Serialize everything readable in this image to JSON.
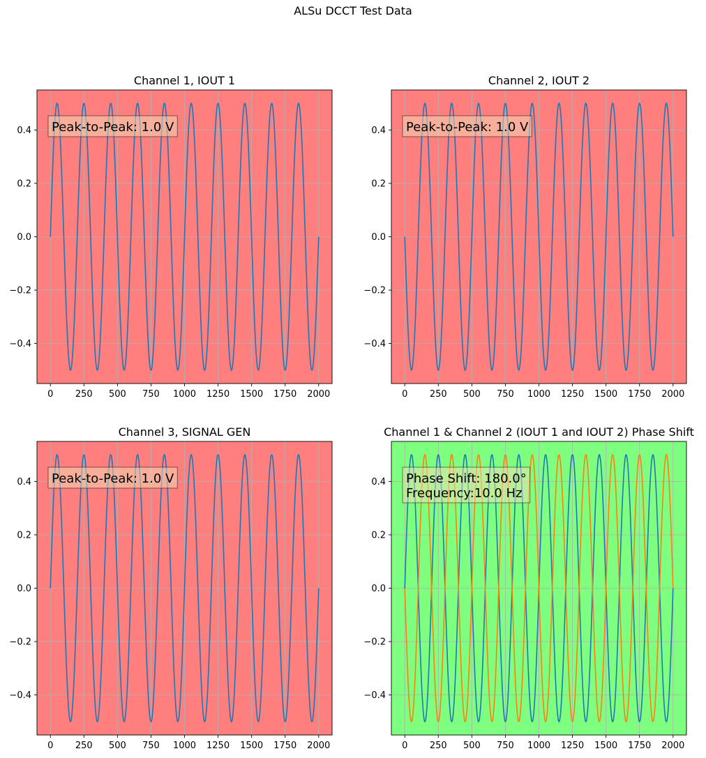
{
  "suptitle": "ALSu DCCT Test Data",
  "colors": {
    "fail_background": "#ff7f7f",
    "pass_background": "#7fff7f",
    "series_1": "#1f77b4",
    "series_2": "#ff7f0e",
    "grid": "#b0b0b0",
    "annotation_box": "#f5deb3"
  },
  "chart_data": [
    {
      "type": "line",
      "title": "Channel 1, IOUT 1",
      "background": "fail",
      "xlim": [
        -100,
        2100
      ],
      "ylim": [
        -0.55,
        0.55
      ],
      "xticks": [
        0,
        250,
        500,
        750,
        1000,
        1250,
        1500,
        1750,
        2000
      ],
      "yticks": [
        -0.4,
        -0.2,
        0.0,
        0.2,
        0.4
      ],
      "ytick_labels": [
        "−0.4",
        "−0.2",
        "0.0",
        "0.2",
        "0.4"
      ],
      "grid": true,
      "annotation": [
        "Peak-to-Peak: 1.0 V"
      ],
      "series": [
        {
          "amplitude": 0.5,
          "cycles": 10,
          "phase_deg": 0,
          "x_start": 0,
          "x_end": 2000,
          "points": 2000,
          "color": "#1f77b4"
        }
      ]
    },
    {
      "type": "line",
      "title": "Channel 2, IOUT 2",
      "background": "fail",
      "xlim": [
        -100,
        2100
      ],
      "ylim": [
        -0.55,
        0.55
      ],
      "xticks": [
        0,
        250,
        500,
        750,
        1000,
        1250,
        1500,
        1750,
        2000
      ],
      "yticks": [
        -0.4,
        -0.2,
        0.0,
        0.2,
        0.4
      ],
      "ytick_labels": [
        "−0.4",
        "−0.2",
        "0.0",
        "0.2",
        "0.4"
      ],
      "grid": true,
      "annotation": [
        "Peak-to-Peak: 1.0 V"
      ],
      "series": [
        {
          "amplitude": 0.5,
          "cycles": 10,
          "phase_deg": 180,
          "x_start": 0,
          "x_end": 2000,
          "points": 2000,
          "color": "#1f77b4"
        }
      ]
    },
    {
      "type": "line",
      "title": "Channel 3, SIGNAL GEN",
      "background": "fail",
      "xlim": [
        -100,
        2100
      ],
      "ylim": [
        -0.55,
        0.55
      ],
      "xticks": [
        0,
        250,
        500,
        750,
        1000,
        1250,
        1500,
        1750,
        2000
      ],
      "yticks": [
        -0.4,
        -0.2,
        0.0,
        0.2,
        0.4
      ],
      "ytick_labels": [
        "−0.4",
        "−0.2",
        "0.0",
        "0.2",
        "0.4"
      ],
      "grid": true,
      "annotation": [
        "Peak-to-Peak: 1.0 V"
      ],
      "series": [
        {
          "amplitude": 0.5,
          "cycles": 10,
          "phase_deg": 0,
          "x_start": 0,
          "x_end": 2000,
          "points": 2000,
          "color": "#1f77b4"
        }
      ]
    },
    {
      "type": "line",
      "title": "Channel 1 & Channel 2 (IOUT 1 and IOUT 2) Phase Shift",
      "background": "pass",
      "xlim": [
        -100,
        2100
      ],
      "ylim": [
        -0.55,
        0.55
      ],
      "xticks": [
        0,
        250,
        500,
        750,
        1000,
        1250,
        1500,
        1750,
        2000
      ],
      "yticks": [
        -0.4,
        -0.2,
        0.0,
        0.2,
        0.4
      ],
      "ytick_labels": [
        "−0.4",
        "−0.2",
        "0.0",
        "0.2",
        "0.4"
      ],
      "grid": true,
      "annotation": [
        "Phase Shift: 180.0°",
        "Frequency:10.0 Hz"
      ],
      "series": [
        {
          "amplitude": 0.5,
          "cycles": 10,
          "phase_deg": 0,
          "x_start": 0,
          "x_end": 2000,
          "points": 2000,
          "color": "#1f77b4"
        },
        {
          "amplitude": 0.5,
          "cycles": 10,
          "phase_deg": 180,
          "x_start": 0,
          "x_end": 2000,
          "points": 2000,
          "color": "#ff7f0e"
        }
      ]
    }
  ]
}
